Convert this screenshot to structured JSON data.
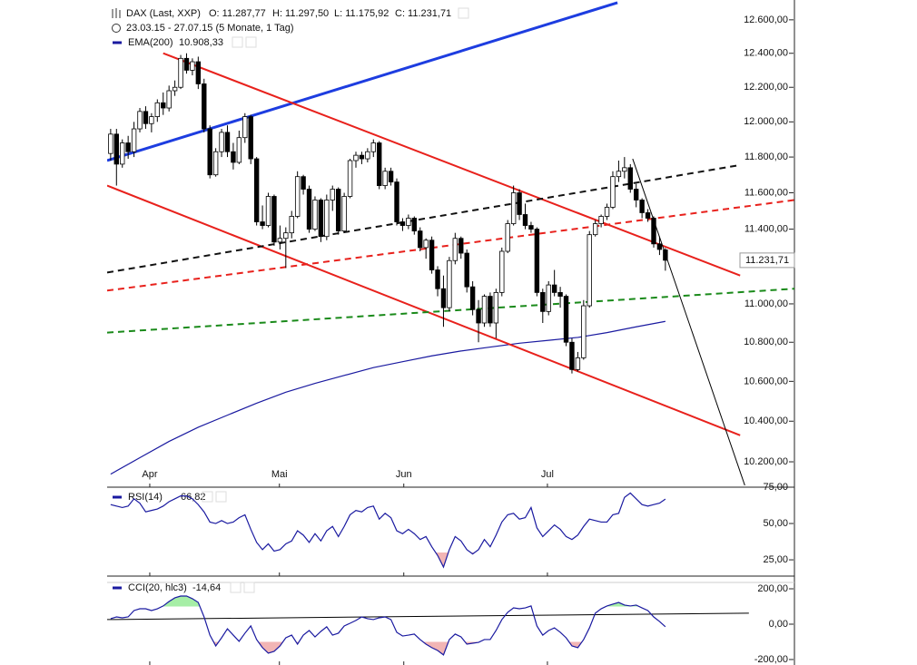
{
  "chart_data": [
    {
      "type": "candlestick",
      "title": "DAX (Last, XXP)",
      "quote_labels": [
        "O: 11.287,77",
        "H: 11.297,50",
        "L: 11.175,92",
        "C: 11.231,71"
      ],
      "quote_color": "#e0141e",
      "subtitle": "23.03.15 - 27.07.15 (5 Monate, 1 Tag)",
      "open": [
        11820,
        11930,
        11760,
        11880,
        11830,
        11960,
        12060,
        11990,
        12030,
        12110,
        12080,
        12180,
        12200,
        12370,
        12300,
        12350,
        12220,
        11960,
        11700,
        11830,
        11940,
        11830,
        11770,
        11910,
        12030,
        11790,
        11440,
        11420,
        11580,
        11330,
        11350,
        11380,
        11470,
        11690,
        11620,
        11400,
        11560,
        11360,
        11560,
        11620,
        11390,
        11580,
        11780,
        11810,
        11790,
        11830,
        11880,
        11640,
        11720,
        11660,
        11440,
        11420,
        11460,
        11390,
        11300,
        11340,
        11180,
        11080,
        10980,
        11230,
        11350,
        11270,
        11090,
        10970,
        10900,
        11040,
        10900,
        11060,
        11280,
        11430,
        11600,
        11480,
        11420,
        11400,
        11060,
        10960,
        11100,
        11060,
        11040,
        10800,
        10660,
        10720,
        10990,
        11370,
        11430,
        11470,
        11520,
        11690,
        11720,
        11740,
        11620,
        11560,
        11490,
        11460,
        11320,
        11287.77
      ],
      "high": [
        11960,
        11960,
        11900,
        11920,
        12000,
        12080,
        12090,
        12050,
        12130,
        12170,
        12210,
        12240,
        12390,
        12400,
        12370,
        12380,
        12250,
        11980,
        11850,
        11960,
        11980,
        11880,
        11950,
        12050,
        12040,
        11800,
        11530,
        11600,
        11590,
        11420,
        11410,
        11500,
        11720,
        11700,
        11640,
        11580,
        11570,
        11590,
        11640,
        11630,
        11600,
        11790,
        11830,
        11830,
        11850,
        11900,
        11890,
        11740,
        11740,
        11680,
        11460,
        11480,
        11470,
        11410,
        11350,
        11360,
        11200,
        11150,
        11250,
        11380,
        11360,
        11290,
        11120,
        11020,
        11050,
        11060,
        11080,
        11300,
        11450,
        11640,
        11620,
        11540,
        11440,
        11410,
        11080,
        11120,
        11180,
        11090,
        11050,
        10820,
        10750,
        11020,
        11390,
        11450,
        11480,
        11540,
        11720,
        11780,
        11800,
        11760,
        11650,
        11570,
        11510,
        11470,
        11360,
        11297.5
      ],
      "low": [
        11780,
        11640,
        11740,
        11790,
        11800,
        11940,
        11960,
        11940,
        12000,
        12040,
        12060,
        12150,
        12190,
        12280,
        12270,
        12190,
        11940,
        11680,
        11690,
        11800,
        11800,
        11730,
        11760,
        11880,
        11760,
        11420,
        11400,
        11410,
        11310,
        11290,
        11190,
        11350,
        11460,
        11590,
        11380,
        11390,
        11330,
        11340,
        11500,
        11370,
        11380,
        11570,
        11740,
        11760,
        11770,
        11800,
        11620,
        11620,
        11640,
        11420,
        11390,
        11400,
        11370,
        11280,
        11240,
        11160,
        11040,
        10880,
        10960,
        11210,
        11240,
        11060,
        10940,
        10800,
        10880,
        10880,
        10820,
        11040,
        11270,
        11420,
        11450,
        11400,
        11380,
        11040,
        10900,
        10940,
        11040,
        10980,
        10780,
        10640,
        10650,
        10710,
        10980,
        11360,
        11410,
        11450,
        11510,
        11660,
        11680,
        11600,
        11520,
        11460,
        11440,
        11300,
        11260,
        11175.92
      ],
      "close": [
        11930,
        11760,
        11880,
        11830,
        11960,
        12060,
        11990,
        12030,
        12110,
        12080,
        12180,
        12200,
        12370,
        12300,
        12350,
        12220,
        11960,
        11700,
        11830,
        11940,
        11830,
        11770,
        11910,
        12030,
        11790,
        11440,
        11420,
        11580,
        11330,
        11350,
        11380,
        11470,
        11690,
        11620,
        11400,
        11560,
        11360,
        11560,
        11620,
        11390,
        11580,
        11780,
        11810,
        11790,
        11830,
        11880,
        11640,
        11720,
        11660,
        11440,
        11420,
        11460,
        11390,
        11300,
        11340,
        11180,
        11080,
        10980,
        11230,
        11350,
        11270,
        11090,
        10970,
        10900,
        11040,
        10900,
        11060,
        11280,
        11430,
        11600,
        11480,
        11420,
        11400,
        11060,
        10960,
        11100,
        11060,
        11040,
        10800,
        10660,
        10720,
        10990,
        11370,
        11430,
        11470,
        11520,
        11690,
        11720,
        11740,
        11620,
        11560,
        11490,
        11460,
        11320,
        11290,
        11231.71
      ],
      "up_color": "#ffffff",
      "down_color": "#000000",
      "overlays": [
        {
          "name": "EMA(200)",
          "value_label": "10.908,33",
          "color": "#1a1aa0",
          "x": [
            0,
            5,
            10,
            15,
            20,
            25,
            30,
            35,
            40,
            45,
            50,
            55,
            60,
            65,
            70,
            75,
            80,
            85,
            90,
            95
          ],
          "values": [
            10140,
            10220,
            10300,
            10370,
            10430,
            10490,
            10545,
            10590,
            10630,
            10670,
            10700,
            10730,
            10755,
            10775,
            10795,
            10810,
            10825,
            10850,
            10880,
            10908.33
          ]
        }
      ],
      "lines": [
        {
          "color": "#1d3de0",
          "width": 3,
          "dash": false,
          "x": [
            -0.6,
            86.8
          ],
          "values": [
            11780,
            12704
          ]
        },
        {
          "color": "#e8211c",
          "width": 2,
          "dash": false,
          "x": [
            9.0,
            107.8
          ],
          "values": [
            12400,
            11150
          ]
        },
        {
          "color": "#e8211c",
          "width": 2,
          "dash": false,
          "x": [
            -0.6,
            107.8
          ],
          "values": [
            11640,
            10330
          ]
        },
        {
          "color": "#111111",
          "width": 2,
          "dash": true,
          "x": [
            -0.6,
            107.8
          ],
          "values": [
            11166,
            11755
          ]
        },
        {
          "color": "#e8211c",
          "width": 2,
          "dash": true,
          "x": [
            -0.6,
            117.1
          ],
          "values": [
            11070,
            11560
          ]
        },
        {
          "color": "#1a8a1a",
          "width": 2,
          "dash": true,
          "x": [
            -0.6,
            117.1
          ],
          "values": [
            10850,
            11080
          ]
        },
        {
          "color": "#000000",
          "width": 1,
          "dash": false,
          "x": [
            89.4,
            108.6
          ],
          "values": [
            11790,
            10086
          ]
        }
      ],
      "last_label": {
        "value": 11231.71,
        "label": "11.231,71"
      },
      "log": true,
      "xlim": [
        -0.6,
        117.1
      ],
      "ylim": [
        10077,
        12720
      ],
      "xticks": [
        {
          "value": 6.7,
          "label": "Apr"
        },
        {
          "value": 28.9,
          "label": "Mai"
        },
        {
          "value": 50.2,
          "label": "Jun"
        },
        {
          "value": 74.8,
          "label": "Jul"
        }
      ],
      "yticks": [
        {
          "value": 12600,
          "label": "12.600,00"
        },
        {
          "value": 12400,
          "label": "12.400,00"
        },
        {
          "value": 12200,
          "label": "12.200,00"
        },
        {
          "value": 12000,
          "label": "12.000,00"
        },
        {
          "value": 11800,
          "label": "11.800,00"
        },
        {
          "value": 11600,
          "label": "11.600,00"
        },
        {
          "value": 11400,
          "label": "11.400,00"
        },
        {
          "value": 11000,
          "label": "11.000,00"
        },
        {
          "value": 10800,
          "label": "10.800,00"
        },
        {
          "value": 10600,
          "label": "10.600,00"
        },
        {
          "value": 10400,
          "label": "10.400,00"
        },
        {
          "value": 10200,
          "label": "10.200,00"
        }
      ]
    },
    {
      "type": "line",
      "title": "RSI(14)",
      "value_label": "66,82",
      "color": "#1a1aa0",
      "values": [
        63,
        62,
        61,
        62,
        67,
        64,
        58,
        59,
        60,
        62,
        65,
        67,
        69,
        69,
        67,
        63,
        58,
        51,
        50,
        52,
        50,
        51,
        54,
        56,
        46,
        37,
        32,
        36,
        31,
        32,
        36,
        38,
        45,
        42,
        37,
        43,
        38,
        45,
        48,
        41,
        48,
        56,
        59,
        58,
        61,
        62,
        53,
        57,
        54,
        45,
        43,
        46,
        43,
        39,
        41,
        34,
        28,
        20,
        32,
        41,
        38,
        32,
        29,
        32,
        39,
        34,
        42,
        51,
        56,
        57,
        53,
        54,
        61,
        47,
        41,
        45,
        49,
        46,
        41,
        39,
        42,
        48,
        53,
        52,
        51,
        51,
        56,
        57,
        68,
        71,
        67,
        63,
        62,
        63,
        64,
        66.82
      ],
      "fill_below": 30,
      "fill_color": "#f2b5b5",
      "xlim": [
        -0.6,
        117.1
      ],
      "ylim": [
        13.8,
        75
      ],
      "yticks": [
        {
          "value": 75,
          "label": "75,00"
        },
        {
          "value": 50,
          "label": "50,00"
        },
        {
          "value": 25,
          "label": "25,00"
        }
      ]
    },
    {
      "type": "line",
      "title": "CCI(20, hlc3)",
      "value_label": "-14,64",
      "color": "#1a1aa0",
      "values": [
        31,
        41,
        36,
        41,
        77,
        87,
        87,
        77,
        87,
        103,
        128,
        149,
        159,
        159,
        144,
        123,
        41,
        -62,
        -123,
        -77,
        -26,
        -62,
        -97,
        -51,
        -10,
        -87,
        -133,
        -164,
        -154,
        -123,
        -77,
        -62,
        -113,
        -62,
        -36,
        -72,
        -41,
        -15,
        -62,
        -51,
        -10,
        5,
        21,
        41,
        31,
        26,
        36,
        41,
        26,
        -46,
        -67,
        -62,
        -56,
        -87,
        -113,
        -133,
        -149,
        -174,
        -87,
        -56,
        -72,
        -113,
        -108,
        -103,
        -87,
        -87,
        -36,
        26,
        67,
        92,
        87,
        92,
        103,
        -10,
        -62,
        -36,
        -21,
        -46,
        -77,
        -123,
        -133,
        -87,
        -21,
        62,
        87,
        103,
        113,
        123,
        108,
        103,
        108,
        92,
        77,
        41,
        15,
        -14.64
      ],
      "fill_above": 100,
      "fill_above_color": "#a6eea6",
      "fill_below": -100,
      "fill_color": "#f2b5b5",
      "lines": [
        {
          "color": "#000000",
          "width": 1,
          "dash": false,
          "x": [
            -0.6,
            109.3
          ],
          "values": [
            26,
            62
          ]
        }
      ],
      "xlim": [
        -0.6,
        117.1
      ],
      "ylim": [
        -231,
        236
      ],
      "yticks": [
        {
          "value": 200,
          "label": "200,00"
        },
        {
          "value": 0,
          "label": "0,00"
        },
        {
          "value": -200,
          "label": "-200,00"
        }
      ]
    }
  ]
}
